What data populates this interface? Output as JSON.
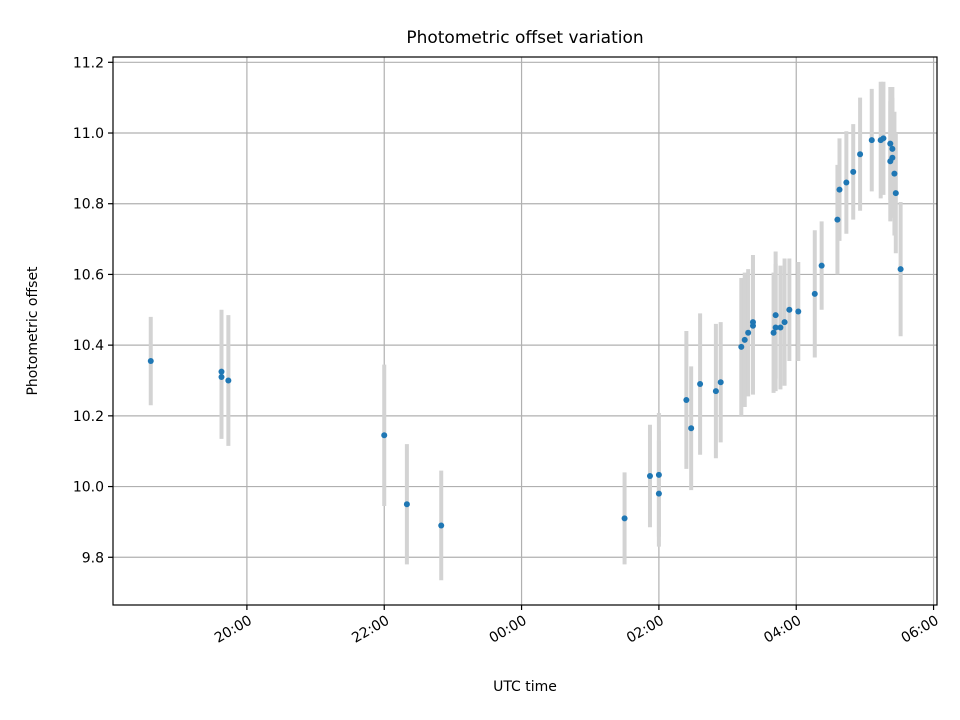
{
  "chart_data": {
    "type": "scatter",
    "title": "Photometric offset variation",
    "xlabel": "UTC time",
    "ylabel": "Photometric offset",
    "x_unit": "hours since 00:00 UTC",
    "xlim": [
      -5.95,
      6.05
    ],
    "ylim": [
      9.665,
      11.215
    ],
    "x_ticks": [
      {
        "value": -4,
        "label": "20:00"
      },
      {
        "value": -2,
        "label": "22:00"
      },
      {
        "value": 0,
        "label": "00:00"
      },
      {
        "value": 2,
        "label": "02:00"
      },
      {
        "value": 4,
        "label": "04:00"
      },
      {
        "value": 6,
        "label": "06:00"
      }
    ],
    "y_ticks": [
      {
        "value": 9.8,
        "label": "9.8"
      },
      {
        "value": 10.0,
        "label": "10.0"
      },
      {
        "value": 10.2,
        "label": "10.2"
      },
      {
        "value": 10.4,
        "label": "10.4"
      },
      {
        "value": 10.6,
        "label": "10.6"
      },
      {
        "value": 10.8,
        "label": "10.8"
      },
      {
        "value": 11.0,
        "label": "11.0"
      },
      {
        "value": 11.2,
        "label": "11.2"
      }
    ],
    "grid": true,
    "point_color": "#1f77b4",
    "errorbar_color": "#d3d3d3",
    "series": [
      {
        "name": "offset",
        "points": [
          {
            "x": -5.4,
            "y": 10.355,
            "err": 0.125
          },
          {
            "x": -4.37,
            "y": 10.325,
            "err": 0.175
          },
          {
            "x": -4.37,
            "y": 10.31,
            "err": 0.175
          },
          {
            "x": -4.27,
            "y": 10.3,
            "err": 0.185
          },
          {
            "x": -2.0,
            "y": 10.145,
            "err": 0.2
          },
          {
            "x": -1.67,
            "y": 9.95,
            "err": 0.17
          },
          {
            "x": -1.17,
            "y": 9.89,
            "err": 0.155
          },
          {
            "x": 1.5,
            "y": 9.91,
            "err": 0.13
          },
          {
            "x": 1.87,
            "y": 10.03,
            "err": 0.145
          },
          {
            "x": 2.0,
            "y": 10.033,
            "err": 0.175
          },
          {
            "x": 2.0,
            "y": 9.98,
            "err": 0.15
          },
          {
            "x": 2.4,
            "y": 10.245,
            "err": 0.195
          },
          {
            "x": 2.47,
            "y": 10.165,
            "err": 0.175
          },
          {
            "x": 2.6,
            "y": 10.29,
            "err": 0.2
          },
          {
            "x": 2.83,
            "y": 10.27,
            "err": 0.19
          },
          {
            "x": 2.9,
            "y": 10.295,
            "err": 0.17
          },
          {
            "x": 3.2,
            "y": 10.395,
            "err": 0.195
          },
          {
            "x": 3.25,
            "y": 10.415,
            "err": 0.19
          },
          {
            "x": 3.3,
            "y": 10.435,
            "err": 0.18
          },
          {
            "x": 3.37,
            "y": 10.465,
            "err": 0.19
          },
          {
            "x": 3.37,
            "y": 10.455,
            "err": 0.195
          },
          {
            "x": 3.67,
            "y": 10.435,
            "err": 0.17
          },
          {
            "x": 3.7,
            "y": 10.485,
            "err": 0.18
          },
          {
            "x": 3.7,
            "y": 10.45,
            "err": 0.18
          },
          {
            "x": 3.77,
            "y": 10.45,
            "err": 0.175
          },
          {
            "x": 3.83,
            "y": 10.465,
            "err": 0.18
          },
          {
            "x": 3.9,
            "y": 10.5,
            "err": 0.145
          },
          {
            "x": 4.03,
            "y": 10.495,
            "err": 0.14
          },
          {
            "x": 4.27,
            "y": 10.545,
            "err": 0.18
          },
          {
            "x": 4.37,
            "y": 10.625,
            "err": 0.125
          },
          {
            "x": 4.6,
            "y": 10.755,
            "err": 0.155
          },
          {
            "x": 4.63,
            "y": 10.84,
            "err": 0.145
          },
          {
            "x": 4.73,
            "y": 10.86,
            "err": 0.145
          },
          {
            "x": 4.83,
            "y": 10.89,
            "err": 0.135
          },
          {
            "x": 4.93,
            "y": 10.94,
            "err": 0.16
          },
          {
            "x": 5.1,
            "y": 10.98,
            "err": 0.145
          },
          {
            "x": 5.23,
            "y": 10.98,
            "err": 0.165
          },
          {
            "x": 5.27,
            "y": 10.985,
            "err": 0.16
          },
          {
            "x": 5.37,
            "y": 10.97,
            "err": 0.16
          },
          {
            "x": 5.37,
            "y": 10.92,
            "err": 0.17
          },
          {
            "x": 5.4,
            "y": 10.955,
            "err": 0.175
          },
          {
            "x": 5.4,
            "y": 10.93,
            "err": 0.17
          },
          {
            "x": 5.43,
            "y": 10.885,
            "err": 0.175
          },
          {
            "x": 5.45,
            "y": 10.83,
            "err": 0.17
          },
          {
            "x": 5.52,
            "y": 10.615,
            "err": 0.19
          }
        ]
      }
    ]
  }
}
